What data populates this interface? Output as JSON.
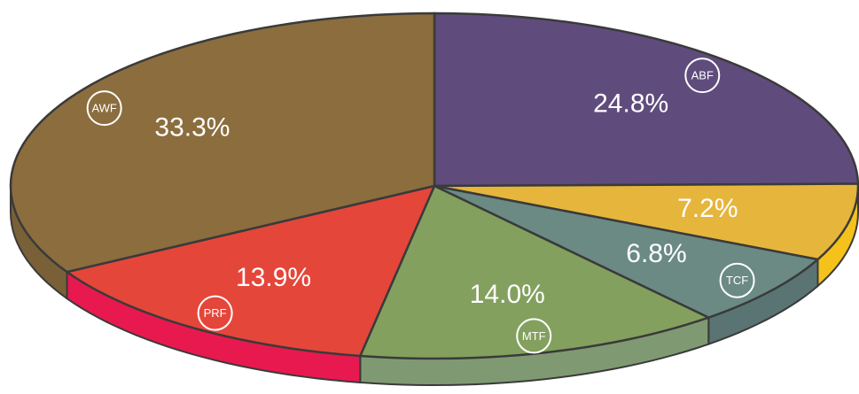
{
  "chart_data": {
    "type": "pie",
    "categories": [
      "ABF",
      null,
      "TCF",
      "MTF",
      "PRF",
      "AWF"
    ],
    "values": [
      24.8,
      7.2,
      6.8,
      14.0,
      13.9,
      33.3
    ],
    "value_labels": [
      "24.8%",
      "7.2%",
      "6.8%",
      "14.0%",
      "13.9%",
      "33.3%"
    ],
    "colors": [
      "#5f4c7c",
      "#e6b53c",
      "#6b8a84",
      "#83a05e",
      "#e5463a",
      "#8b6d3e"
    ],
    "side_colors": [
      "#4a3b62",
      "#f4c21a",
      "#5a7473",
      "#7f9a72",
      "#e8194e",
      "#7a6036"
    ]
  }
}
